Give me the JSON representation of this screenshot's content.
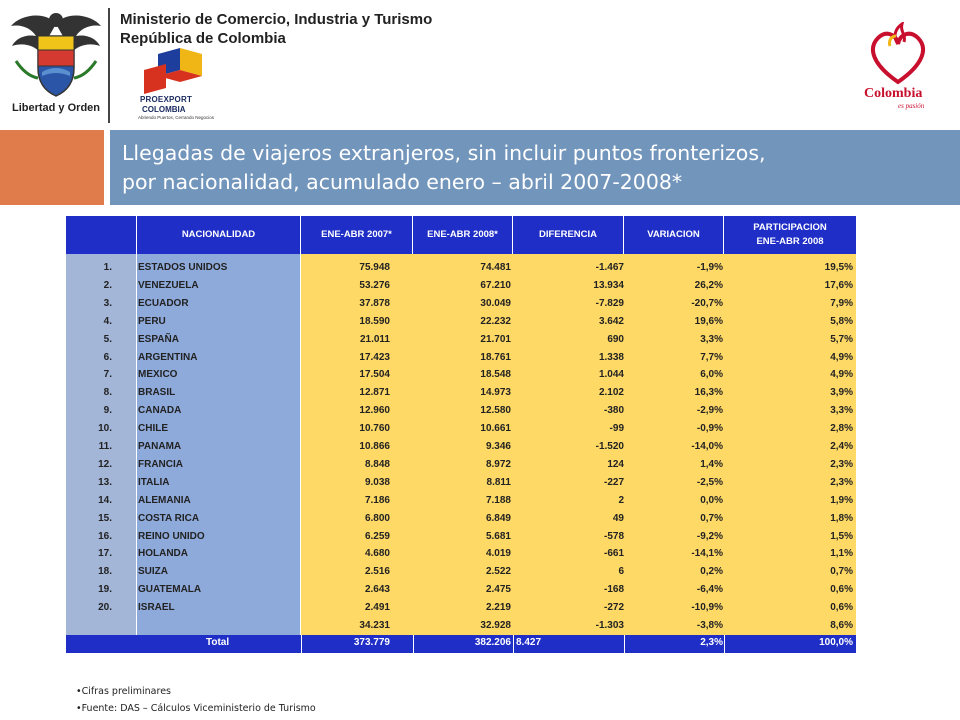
{
  "header": {
    "ministry_line1": "Ministerio de Comercio, Industria y Turismo",
    "ministry_line2": "República de Colombia",
    "crest_motto": "Libertad y Orden",
    "proexport_name": "PROEXPORT",
    "proexport_country": "COLOMBIA",
    "proexport_tagline": "Abriendo Puertos, Cerrando Negocios",
    "brand_word": "Colombia",
    "brand_tagline": "es pasión"
  },
  "title": {
    "line1": "Llegadas de viajeros extranjeros, sin incluir puntos fronterizos,",
    "line2": "por nacionalidad, acumulado enero – abril 2007-2008*"
  },
  "colors": {
    "header_blue": "#1f2ec7",
    "nationality_col": "#8eaadb",
    "numbers_bg": "#ffd966",
    "band_orange": "#e07b4c",
    "band_blue": "#7295bc"
  },
  "table": {
    "columns": [
      "NACIONALIDAD",
      "ENE-ABR 2007*",
      "ENE-ABR 2008*",
      "DIFERENCIA",
      "VARIACION",
      "PARTICIPACION",
      "ENE-ABR 2008"
    ],
    "rows": [
      [
        "1.",
        "ESTADOS UNIDOS",
        "75.948",
        "74.481",
        "-1.467",
        "-1,9%",
        "19,5%"
      ],
      [
        "2.",
        "VENEZUELA",
        "53.276",
        "67.210",
        "13.934",
        "26,2%",
        "17,6%"
      ],
      [
        "3.",
        "ECUADOR",
        "37.878",
        "30.049",
        "-7.829",
        "-20,7%",
        "7,9%"
      ],
      [
        "4.",
        "PERU",
        "18.590",
        "22.232",
        "3.642",
        "19,6%",
        "5,8%"
      ],
      [
        "5.",
        "ESPAÑA",
        "21.011",
        "21.701",
        "690",
        "3,3%",
        "5,7%"
      ],
      [
        "6.",
        "ARGENTINA",
        "17.423",
        "18.761",
        "1.338",
        "7,7%",
        "4,9%"
      ],
      [
        "7.",
        "MEXICO",
        "17.504",
        "18.548",
        "1.044",
        "6,0%",
        "4,9%"
      ],
      [
        "8.",
        "BRASIL",
        "12.871",
        "14.973",
        "2.102",
        "16,3%",
        "3,9%"
      ],
      [
        "9.",
        "CANADA",
        "12.960",
        "12.580",
        "-380",
        "-2,9%",
        "3,3%"
      ],
      [
        "10.",
        "CHILE",
        "10.760",
        "10.661",
        "-99",
        "-0,9%",
        "2,8%"
      ],
      [
        "11.",
        "PANAMA",
        "10.866",
        "9.346",
        "-1.520",
        "-14,0%",
        "2,4%"
      ],
      [
        "12.",
        "FRANCIA",
        "8.848",
        "8.972",
        "124",
        "1,4%",
        "2,3%"
      ],
      [
        "13.",
        "ITALIA",
        "9.038",
        "8.811",
        "-227",
        "-2,5%",
        "2,3%"
      ],
      [
        "14.",
        "ALEMANIA",
        "7.186",
        "7.188",
        "2",
        "0,0%",
        "1,9%"
      ],
      [
        "15.",
        "COSTA RICA",
        "6.800",
        "6.849",
        "49",
        "0,7%",
        "1,8%"
      ],
      [
        "16.",
        "REINO UNIDO",
        "6.259",
        "5.681",
        "-578",
        "-9,2%",
        "1,5%"
      ],
      [
        "17.",
        "HOLANDA",
        "4.680",
        "4.019",
        "-661",
        "-14,1%",
        "1,1%"
      ],
      [
        "18.",
        "SUIZA",
        "2.516",
        "2.522",
        "6",
        "0,2%",
        "0,7%"
      ],
      [
        "19.",
        "GUATEMALA",
        "2.643",
        "2.475",
        "-168",
        "-6,4%",
        "0,6%"
      ],
      [
        "20.",
        "ISRAEL",
        "2.491",
        "2.219",
        "-272",
        "-10,9%",
        "0,6%"
      ],
      [
        "",
        "",
        "34.231",
        "32.928",
        "-1.303",
        "-3,8%",
        "8,6%"
      ]
    ],
    "total": [
      "Total",
      "373.779",
      "382.206",
      "8.427",
      "2,3%",
      "100,0%"
    ]
  },
  "notes": {
    "note1": "•Cifras preliminares",
    "note2": "•Fuente: DAS – Cálculos Viceministerio de Turismo"
  }
}
